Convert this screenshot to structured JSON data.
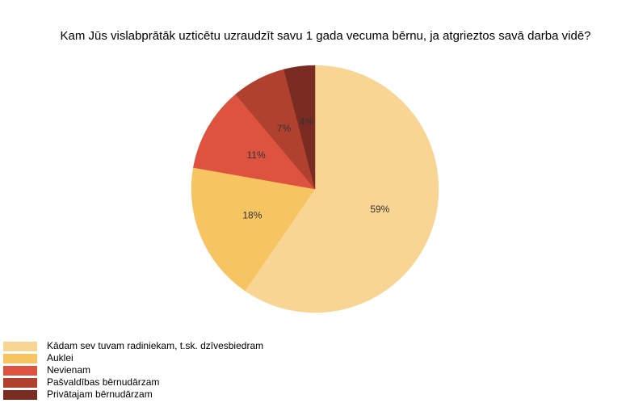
{
  "chart_data": {
    "type": "pie",
    "title": "Kam Jūs vislabprātāk uzticētu uzraudzīt savu 1 gada vecuma bērnu, ja atgrieztos savā darba vidē?",
    "start_angle_deg": 0,
    "direction": "clockwise",
    "legend_position": "bottom-left",
    "slices": [
      {
        "label": "Kādam sev tuvam radiniekam, t.sk. dzīvesbiedram",
        "value": 59,
        "display": "59%",
        "color": "#f8d592"
      },
      {
        "label": "Auklei",
        "value": 18,
        "display": "18%",
        "color": "#f6c562"
      },
      {
        "label": "Nevienam",
        "value": 11,
        "display": "11%",
        "color": "#dd5340"
      },
      {
        "label": "Pašvaldības bērnudārzam",
        "value": 7,
        "display": "7%",
        "color": "#b1412f"
      },
      {
        "label": "Privātajam bērnudārzam",
        "value": 4,
        "display": "4%",
        "color": "#7a2c23"
      }
    ]
  }
}
